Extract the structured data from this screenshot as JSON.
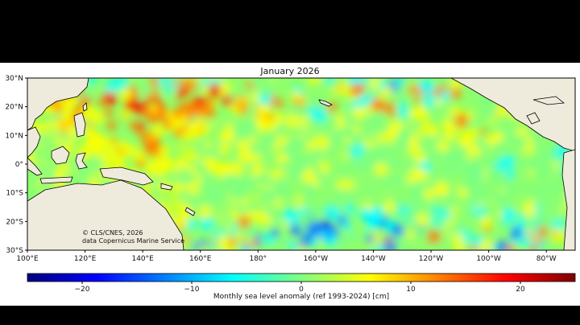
{
  "map": {
    "title": "January 2026",
    "credit_line1": "© CLS/CNES, 2026",
    "credit_line2": "data Copernicus Marine Service",
    "lat_ticks": [
      "30°N",
      "20°N",
      "10°N",
      "0°",
      "10°S",
      "20°S",
      "30°S"
    ],
    "lon_ticks": [
      "100°E",
      "120°E",
      "140°E",
      "160°E",
      "180°",
      "160°W",
      "140°W",
      "120°W",
      "100°W",
      "80°W"
    ],
    "lat_range": [
      -30,
      30
    ],
    "lon_range": [
      100,
      290
    ],
    "land_color": "#efebdc",
    "coastline_color": "#000000"
  },
  "colorbar": {
    "label": "Monthly sea level anomaly (ref 1993-2024) [cm]",
    "ticks": [
      "−20",
      "−10",
      "0",
      "10",
      "20"
    ],
    "tick_values": [
      -20,
      -10,
      0,
      10,
      20
    ],
    "range": [
      -25,
      25
    ],
    "colormap": "jet",
    "colors": [
      "#00007f",
      "#0000ff",
      "#007fff",
      "#00ffff",
      "#7fff7f",
      "#ffff00",
      "#ff7f00",
      "#ff0000",
      "#7f0000"
    ]
  }
}
